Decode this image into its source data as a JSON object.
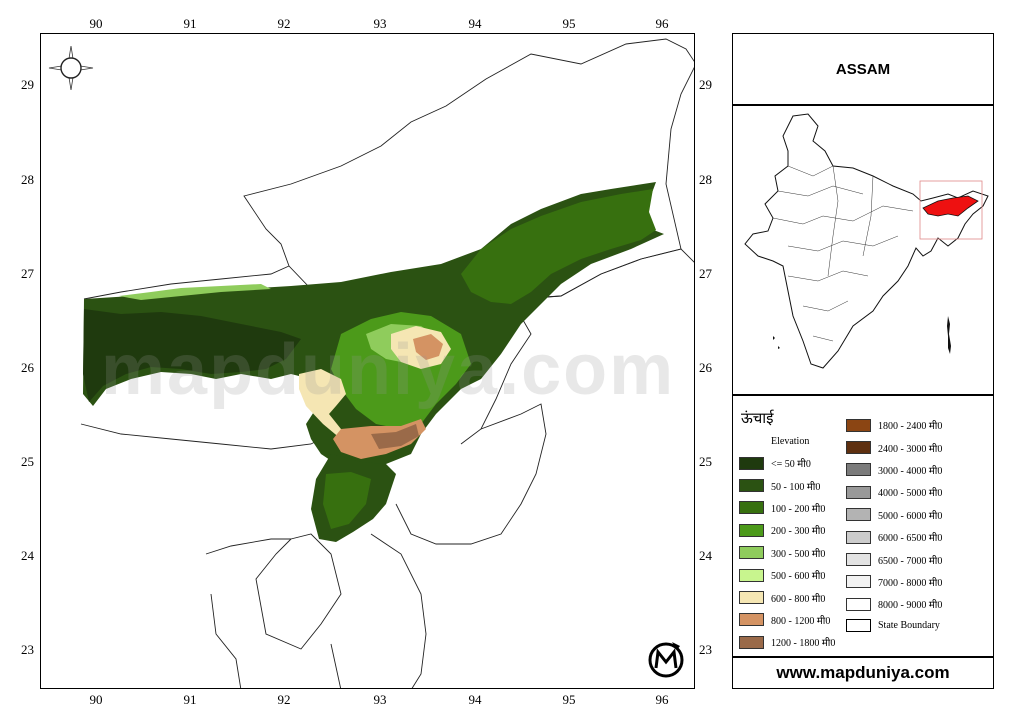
{
  "title": "ASSAM",
  "website": "www.mapduniya.com",
  "watermark": "mapduniya.com",
  "axis": {
    "longitude_ticks": [
      "90",
      "91",
      "92",
      "93",
      "94",
      "95",
      "96"
    ],
    "latitude_ticks": [
      "29",
      "28",
      "27",
      "26",
      "25",
      "24",
      "23"
    ]
  },
  "legend": {
    "heading": "ऊंचाई",
    "subheading": "Elevation",
    "column1": [
      {
        "label": "<= 50 मी0",
        "color": "#1f3a0e"
      },
      {
        "label": "50 - 100 मी0",
        "color": "#2b5212"
      },
      {
        "label": "100 - 200 मी0",
        "color": "#37700f"
      },
      {
        "label": "200 - 300 मी0",
        "color": "#4c9a1a"
      },
      {
        "label": "300 - 500 मी0",
        "color": "#8fcc5c"
      },
      {
        "label": "500 - 600 मी0",
        "color": "#c8f58e"
      },
      {
        "label": "600 - 800 मी0",
        "color": "#f5e6b3"
      },
      {
        "label": "800 - 1200 मी0",
        "color": "#d49363"
      },
      {
        "label": "1200 - 1800 मी0",
        "color": "#9a6a49"
      }
    ],
    "column2": [
      {
        "label": "1800 - 2400 मी0",
        "color": "#8b4513"
      },
      {
        "label": "2400 - 3000 मी0",
        "color": "#5e3010"
      },
      {
        "label": "3000 - 4000 मी0",
        "color": "#7b7b7b"
      },
      {
        "label": "4000 - 5000 मी0",
        "color": "#999999"
      },
      {
        "label": "5000 - 6000 मी0",
        "color": "#b3b3b3"
      },
      {
        "label": "6000 - 6500 मी0",
        "color": "#cccccc"
      },
      {
        "label": "6500 - 7000 मी0",
        "color": "#e3e3e3"
      },
      {
        "label": "7000 - 8000 मी0",
        "color": "#f2f2f2"
      },
      {
        "label": "8000 - 9000 मी0",
        "color": "#ffffff"
      }
    ],
    "state_boundary": "State Boundary"
  },
  "inset": {
    "highlight_color": "#ee1111"
  }
}
